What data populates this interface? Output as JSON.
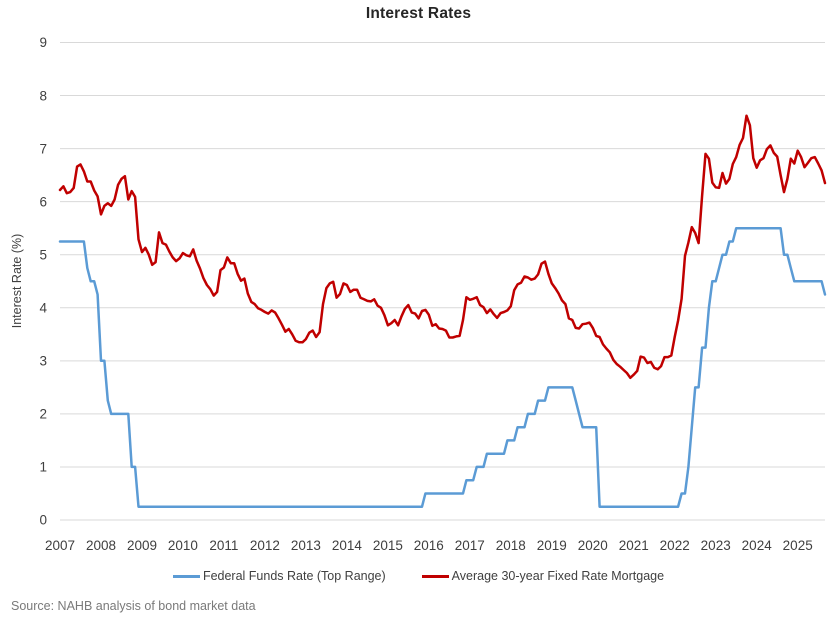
{
  "title": "Interest Rates",
  "y_axis": {
    "label": "Interest Rate (%)"
  },
  "source": "Source: NAHB analysis of bond market data",
  "colors": {
    "gridline": "#D9D9D9",
    "tick_text": "#404040",
    "title_text": "#262626",
    "source_text": "#7A7A7A"
  },
  "chart_data": {
    "type": "line",
    "title": "Interest Rates",
    "xlabel": "",
    "ylabel": "Interest Rate (%)",
    "ylim": [
      0,
      9
    ],
    "ytick_step": 1,
    "grid": true,
    "legend_position": "bottom",
    "x_unit": "month",
    "x_range": "Jan 2007 - Sep 2025",
    "x_tick_labels": [
      "2007",
      "2008",
      "2009",
      "2010",
      "2011",
      "2012",
      "2013",
      "2014",
      "2015",
      "2016",
      "2017",
      "2018",
      "2019",
      "2020",
      "2021",
      "2022",
      "2023",
      "2024",
      "2025"
    ],
    "series": [
      {
        "name": "Federal Funds Rate (Top Range)",
        "color": "#5B9BD5",
        "values": [
          5.25,
          5.25,
          5.25,
          5.25,
          5.25,
          5.25,
          5.25,
          5.25,
          4.75,
          4.5,
          4.5,
          4.25,
          3,
          3,
          2.25,
          2,
          2,
          2,
          2,
          2,
          2,
          1,
          1,
          0.25,
          0.25,
          0.25,
          0.25,
          0.25,
          0.25,
          0.25,
          0.25,
          0.25,
          0.25,
          0.25,
          0.25,
          0.25,
          0.25,
          0.25,
          0.25,
          0.25,
          0.25,
          0.25,
          0.25,
          0.25,
          0.25,
          0.25,
          0.25,
          0.25,
          0.25,
          0.25,
          0.25,
          0.25,
          0.25,
          0.25,
          0.25,
          0.25,
          0.25,
          0.25,
          0.25,
          0.25,
          0.25,
          0.25,
          0.25,
          0.25,
          0.25,
          0.25,
          0.25,
          0.25,
          0.25,
          0.25,
          0.25,
          0.25,
          0.25,
          0.25,
          0.25,
          0.25,
          0.25,
          0.25,
          0.25,
          0.25,
          0.25,
          0.25,
          0.25,
          0.25,
          0.25,
          0.25,
          0.25,
          0.25,
          0.25,
          0.25,
          0.25,
          0.25,
          0.25,
          0.25,
          0.25,
          0.25,
          0.25,
          0.25,
          0.25,
          0.25,
          0.25,
          0.25,
          0.25,
          0.25,
          0.25,
          0.25,
          0.25,
          0.5,
          0.5,
          0.5,
          0.5,
          0.5,
          0.5,
          0.5,
          0.5,
          0.5,
          0.5,
          0.5,
          0.5,
          0.75,
          0.75,
          0.75,
          1,
          1,
          1,
          1.25,
          1.25,
          1.25,
          1.25,
          1.25,
          1.25,
          1.5,
          1.5,
          1.5,
          1.75,
          1.75,
          1.75,
          2,
          2,
          2,
          2.25,
          2.25,
          2.25,
          2.5,
          2.5,
          2.5,
          2.5,
          2.5,
          2.5,
          2.5,
          2.5,
          2.25,
          2,
          1.75,
          1.75,
          1.75,
          1.75,
          1.75,
          0.25,
          0.25,
          0.25,
          0.25,
          0.25,
          0.25,
          0.25,
          0.25,
          0.25,
          0.25,
          0.25,
          0.25,
          0.25,
          0.25,
          0.25,
          0.25,
          0.25,
          0.25,
          0.25,
          0.25,
          0.25,
          0.25,
          0.25,
          0.25,
          0.5,
          0.5,
          1,
          1.75,
          2.5,
          2.5,
          3.25,
          3.25,
          4,
          4.5,
          4.5,
          4.75,
          5,
          5,
          5.25,
          5.25,
          5.5,
          5.5,
          5.5,
          5.5,
          5.5,
          5.5,
          5.5,
          5.5,
          5.5,
          5.5,
          5.5,
          5.5,
          5.5,
          5.5,
          5,
          5,
          4.75,
          4.5,
          4.5,
          4.5,
          4.5,
          4.5,
          4.5,
          4.5,
          4.5,
          4.5,
          4.25
        ]
      },
      {
        "name": "Average 30-year Fixed Rate Mortgage",
        "color": "#C00000",
        "values": [
          6.22,
          6.29,
          6.16,
          6.18,
          6.26,
          6.66,
          6.7,
          6.57,
          6.38,
          6.38,
          6.21,
          6.1,
          5.76,
          5.92,
          5.97,
          5.92,
          6.04,
          6.32,
          6.43,
          6.48,
          6.04,
          6.2,
          6.09,
          5.29,
          5.05,
          5.13,
          5.0,
          4.81,
          4.86,
          5.42,
          5.22,
          5.19,
          5.06,
          4.95,
          4.88,
          4.93,
          5.03,
          4.99,
          4.97,
          5.1,
          4.89,
          4.74,
          4.56,
          4.43,
          4.35,
          4.23,
          4.3,
          4.71,
          4.76,
          4.95,
          4.84,
          4.84,
          4.64,
          4.51,
          4.55,
          4.27,
          4.11,
          4.07,
          3.99,
          3.96,
          3.92,
          3.89,
          3.95,
          3.91,
          3.8,
          3.68,
          3.55,
          3.6,
          3.5,
          3.38,
          3.35,
          3.35,
          3.41,
          3.53,
          3.57,
          3.45,
          3.54,
          4.07,
          4.37,
          4.46,
          4.49,
          4.19,
          4.26,
          4.46,
          4.43,
          4.3,
          4.34,
          4.34,
          4.19,
          4.16,
          4.13,
          4.12,
          4.16,
          4.04,
          4.0,
          3.86,
          3.67,
          3.71,
          3.77,
          3.67,
          3.84,
          3.98,
          4.05,
          3.91,
          3.89,
          3.8,
          3.94,
          3.96,
          3.87,
          3.66,
          3.69,
          3.61,
          3.6,
          3.57,
          3.44,
          3.44,
          3.46,
          3.47,
          3.77,
          4.2,
          4.15,
          4.17,
          4.2,
          4.05,
          4.01,
          3.9,
          3.97,
          3.88,
          3.81,
          3.9,
          3.92,
          3.95,
          4.03,
          4.33,
          4.44,
          4.47,
          4.59,
          4.57,
          4.53,
          4.55,
          4.63,
          4.83,
          4.87,
          4.64,
          4.46,
          4.37,
          4.27,
          4.14,
          4.07,
          3.8,
          3.77,
          3.62,
          3.61,
          3.69,
          3.7,
          3.72,
          3.62,
          3.47,
          3.45,
          3.31,
          3.23,
          3.16,
          3.02,
          2.94,
          2.89,
          2.83,
          2.77,
          2.68,
          2.74,
          2.81,
          3.08,
          3.06,
          2.96,
          2.98,
          2.87,
          2.84,
          2.9,
          3.07,
          3.07,
          3.1,
          3.45,
          3.76,
          4.17,
          4.98,
          5.23,
          5.52,
          5.41,
          5.22,
          6.11,
          6.9,
          6.81,
          6.36,
          6.27,
          6.26,
          6.54,
          6.34,
          6.43,
          6.71,
          6.84,
          7.07,
          7.2,
          7.62,
          7.44,
          6.82,
          6.64,
          6.78,
          6.82,
          6.99,
          7.06,
          6.92,
          6.85,
          6.5,
          6.18,
          6.43,
          6.81,
          6.72,
          6.96,
          6.84,
          6.65,
          6.73,
          6.82,
          6.84,
          6.72,
          6.59,
          6.35
        ]
      }
    ]
  }
}
